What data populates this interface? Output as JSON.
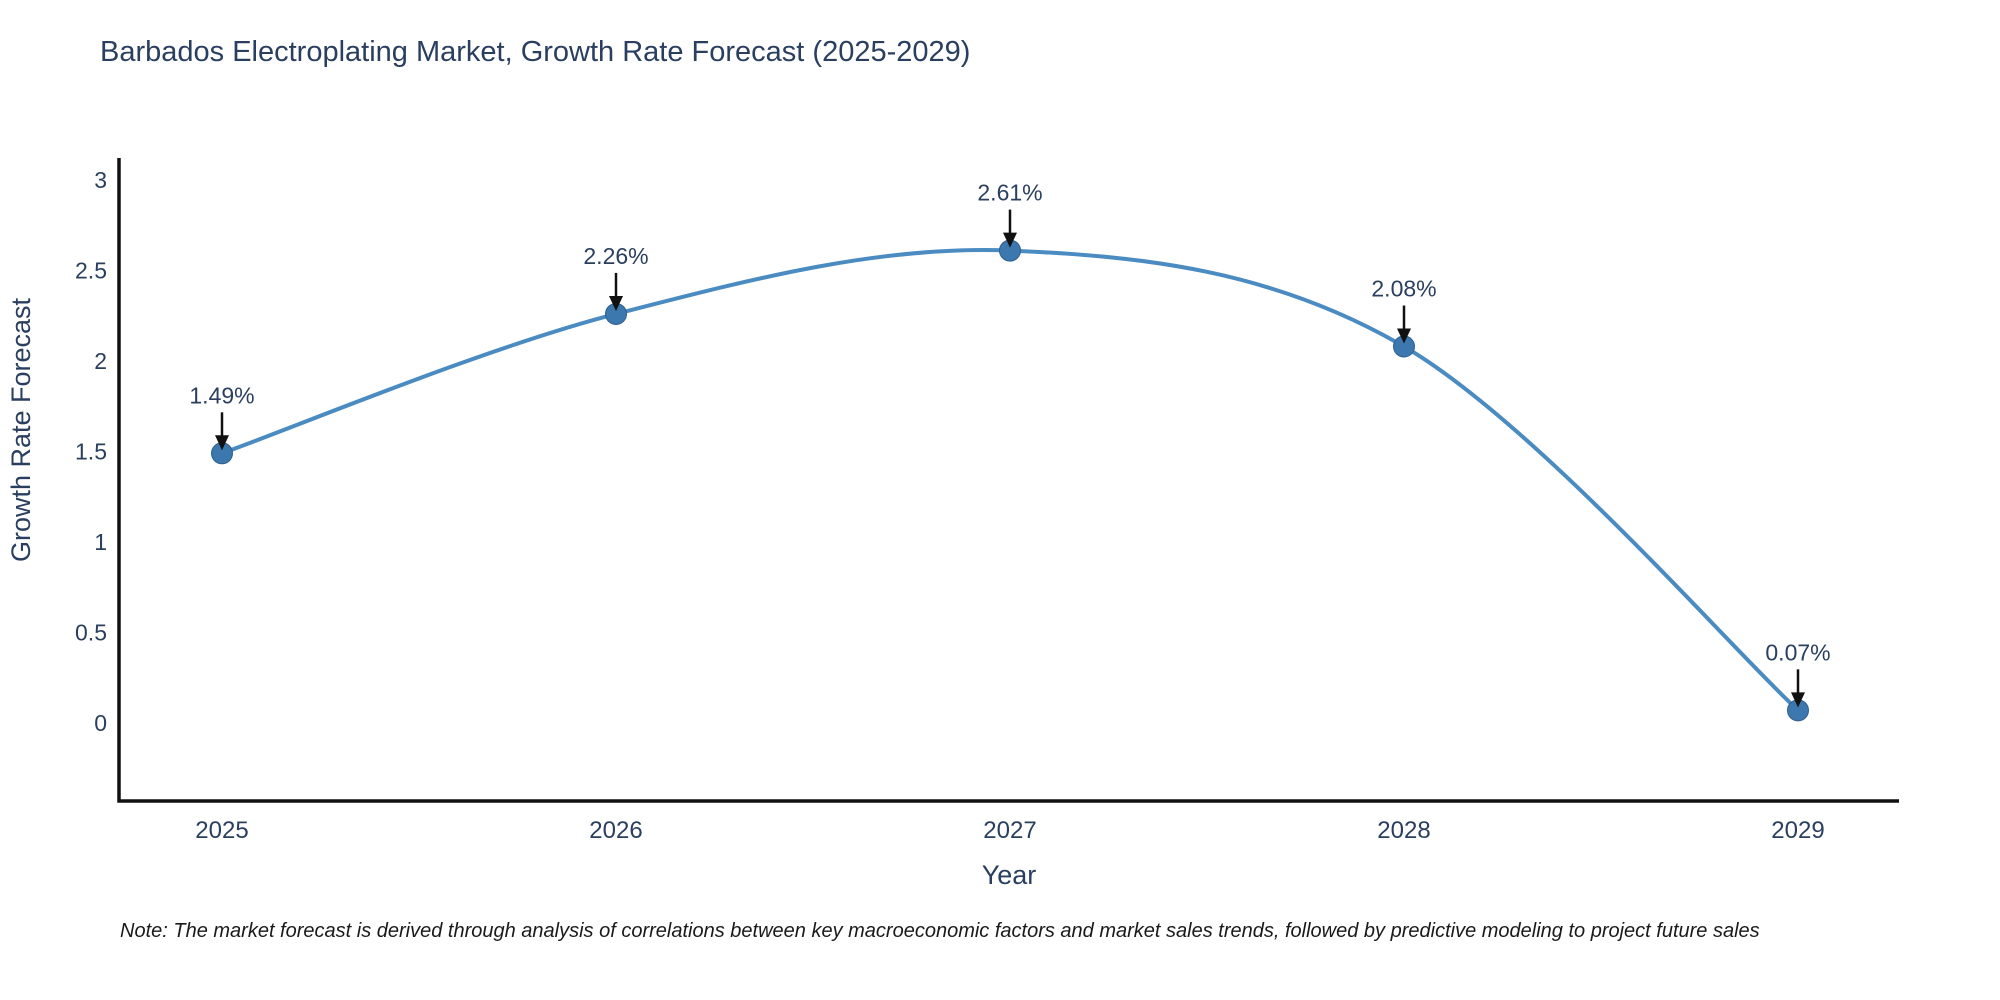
{
  "header": {
    "title": "Barbados Electroplating Market, Growth Rate Forecast (2025-2029)"
  },
  "footnote": "Note: The market forecast is derived through analysis of correlations between key macroeconomic factors and market sales trends, followed by predictive modeling to project future sales",
  "chart_data": {
    "type": "line",
    "title": "Barbados Electroplating Market, Growth Rate Forecast (2025-2029)",
    "categories": [
      "2025",
      "2026",
      "2027",
      "2028",
      "2029"
    ],
    "values": [
      1.49,
      2.26,
      2.61,
      2.08,
      0.07
    ],
    "point_labels": [
      "1.49%",
      "2.26%",
      "2.61%",
      "2.08%",
      "0.07%"
    ],
    "xlabel": "Year",
    "ylabel": "Growth Rate Forecast",
    "yticks": [
      0,
      0.5,
      1,
      1.5,
      2,
      2.5,
      3
    ],
    "ytick_labels": [
      "0",
      "0.5",
      "1",
      "1.5",
      "2",
      "2.5",
      "3"
    ],
    "ylim": [
      -0.43,
      3.12
    ],
    "line_shape": "spline",
    "grid": false,
    "legend": false,
    "annotations_have_arrows": true,
    "colors": {
      "line": "#4a8bc2",
      "marker": "#3c78ad",
      "marker_edge": "#2f5f8f",
      "axis": "#111111",
      "text": "#2a3f5f",
      "arrow": "#111111"
    }
  }
}
